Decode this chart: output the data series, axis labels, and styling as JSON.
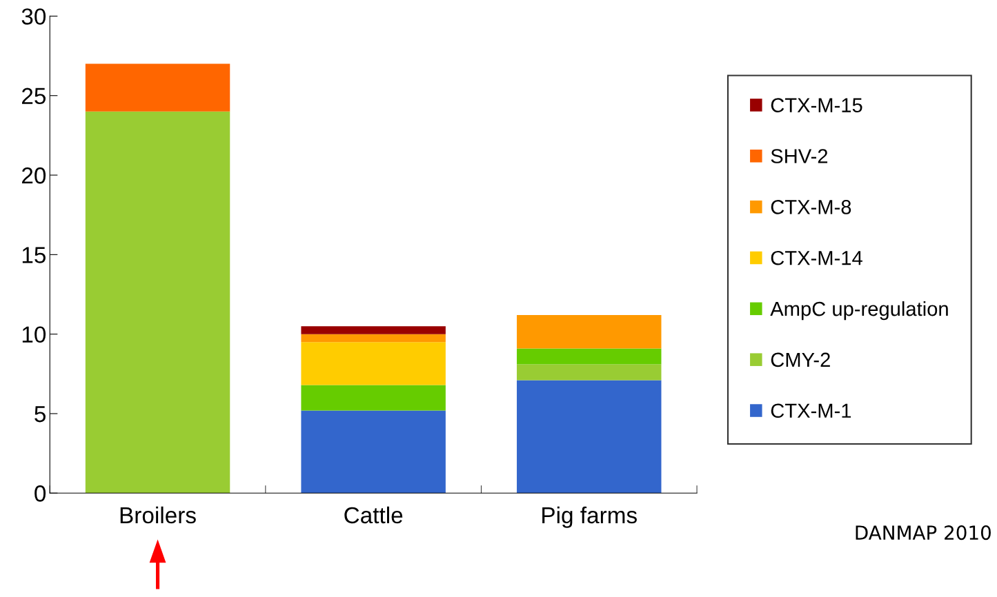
{
  "chart_data": {
    "type": "bar",
    "stacked": true,
    "categories": [
      "Broilers",
      "Cattle",
      "Pig farms"
    ],
    "series": [
      {
        "name": "CTX-M-1",
        "color": "#3366cc",
        "values": [
          0,
          5.2,
          7.1
        ]
      },
      {
        "name": "CMY-2",
        "color": "#99cc33",
        "values": [
          24,
          0,
          1.0
        ]
      },
      {
        "name": "AmpC up-regulation",
        "color": "#66cc00",
        "values": [
          0,
          1.6,
          1.0
        ]
      },
      {
        "name": "CTX-M-14",
        "color": "#ffcc00",
        "values": [
          0,
          2.7,
          0
        ]
      },
      {
        "name": "CTX-M-8",
        "color": "#ff9900",
        "values": [
          0,
          0.5,
          2.1
        ]
      },
      {
        "name": "SHV-2",
        "color": "#ff6600",
        "values": [
          3,
          0,
          0
        ]
      },
      {
        "name": "CTX-M-15",
        "color": "#990000",
        "values": [
          0,
          0.5,
          0
        ]
      }
    ],
    "ylim": [
      0,
      30
    ],
    "yticks": [
      0,
      5,
      10,
      15,
      20,
      25,
      30
    ],
    "legend": "right",
    "grid": false,
    "annotations": [
      "DANMAP 2010"
    ]
  }
}
